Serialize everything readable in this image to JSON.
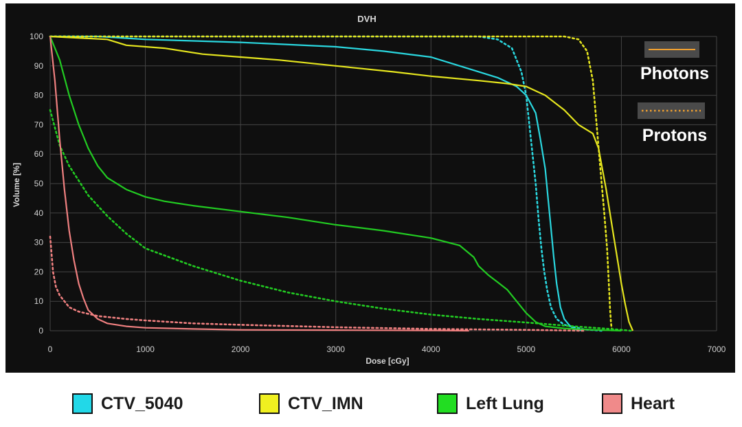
{
  "chart_data": {
    "type": "line",
    "title": "DVH",
    "xlabel": "Dose [cGy]",
    "ylabel": "Volume [%]",
    "xlim": [
      0,
      7000
    ],
    "ylim": [
      0,
      100
    ],
    "xticks": [
      0,
      1000,
      2000,
      3000,
      4000,
      5000,
      6000,
      7000
    ],
    "yticks": [
      0,
      10,
      20,
      30,
      40,
      50,
      60,
      70,
      80,
      90,
      100
    ],
    "grid": true,
    "styles": [
      {
        "name": "Photons",
        "dash": "solid",
        "color": "#f0a030"
      },
      {
        "name": "Protons",
        "dash": "dotted",
        "color": "#f0a030"
      }
    ],
    "series": [
      {
        "name": "CTV_5040",
        "modality": "Photons",
        "color": "#2ad8e0",
        "points": [
          [
            0,
            100
          ],
          [
            500,
            100
          ],
          [
            1000,
            99
          ],
          [
            2000,
            98
          ],
          [
            3000,
            96.5
          ],
          [
            3500,
            95
          ],
          [
            4000,
            93
          ],
          [
            4400,
            89
          ],
          [
            4700,
            86
          ],
          [
            4900,
            83
          ],
          [
            5000,
            80
          ],
          [
            5100,
            74
          ],
          [
            5150,
            65
          ],
          [
            5200,
            55
          ],
          [
            5230,
            45
          ],
          [
            5260,
            35
          ],
          [
            5290,
            25
          ],
          [
            5320,
            16
          ],
          [
            5360,
            8
          ],
          [
            5400,
            4
          ],
          [
            5450,
            2
          ],
          [
            5500,
            0.6
          ],
          [
            5600,
            0
          ]
        ]
      },
      {
        "name": "CTV_5040",
        "modality": "Protons",
        "color": "#2ad8e0",
        "points": [
          [
            0,
            100
          ],
          [
            3000,
            100
          ],
          [
            4500,
            100
          ],
          [
            4700,
            99
          ],
          [
            4850,
            96
          ],
          [
            4950,
            88
          ],
          [
            5000,
            80
          ],
          [
            5050,
            65
          ],
          [
            5100,
            50
          ],
          [
            5130,
            38
          ],
          [
            5160,
            28
          ],
          [
            5190,
            20
          ],
          [
            5220,
            14
          ],
          [
            5260,
            8
          ],
          [
            5320,
            4
          ],
          [
            5400,
            2
          ],
          [
            5600,
            0.5
          ],
          [
            5800,
            0
          ]
        ]
      },
      {
        "name": "CTV_IMN",
        "modality": "Photons",
        "color": "#e6e61e",
        "points": [
          [
            0,
            100
          ],
          [
            600,
            99
          ],
          [
            800,
            97
          ],
          [
            1200,
            96
          ],
          [
            1600,
            94
          ],
          [
            2000,
            93
          ],
          [
            2400,
            92
          ],
          [
            3000,
            90
          ],
          [
            3600,
            88
          ],
          [
            4000,
            86.5
          ],
          [
            4500,
            85
          ],
          [
            4800,
            84
          ],
          [
            5000,
            83
          ],
          [
            5200,
            80
          ],
          [
            5400,
            75
          ],
          [
            5550,
            70
          ],
          [
            5700,
            67
          ],
          [
            5760,
            62
          ],
          [
            5800,
            55
          ],
          [
            5840,
            48
          ],
          [
            5880,
            40
          ],
          [
            5920,
            32
          ],
          [
            5960,
            24
          ],
          [
            6000,
            16
          ],
          [
            6040,
            9
          ],
          [
            6080,
            3
          ],
          [
            6120,
            0
          ]
        ]
      },
      {
        "name": "CTV_IMN",
        "modality": "Protons",
        "color": "#e6e61e",
        "points": [
          [
            0,
            100
          ],
          [
            5000,
            100
          ],
          [
            5400,
            100
          ],
          [
            5550,
            99
          ],
          [
            5640,
            95
          ],
          [
            5700,
            85
          ],
          [
            5740,
            70
          ],
          [
            5780,
            55
          ],
          [
            5820,
            40
          ],
          [
            5850,
            28
          ],
          [
            5870,
            15
          ],
          [
            5880,
            8
          ],
          [
            5890,
            3
          ],
          [
            5900,
            0
          ]
        ]
      },
      {
        "name": "Left Lung",
        "modality": "Photons",
        "color": "#22cc22",
        "points": [
          [
            0,
            100
          ],
          [
            100,
            92
          ],
          [
            200,
            80
          ],
          [
            300,
            70
          ],
          [
            400,
            62
          ],
          [
            500,
            56
          ],
          [
            600,
            52
          ],
          [
            800,
            48
          ],
          [
            1000,
            45.5
          ],
          [
            1200,
            44
          ],
          [
            1500,
            42.5
          ],
          [
            2000,
            40.5
          ],
          [
            2500,
            38.5
          ],
          [
            3000,
            36
          ],
          [
            3500,
            34
          ],
          [
            4000,
            31.5
          ],
          [
            4300,
            29
          ],
          [
            4450,
            25
          ],
          [
            4500,
            22
          ],
          [
            4600,
            19
          ],
          [
            4700,
            16.5
          ],
          [
            4800,
            14
          ],
          [
            4900,
            10
          ],
          [
            5000,
            6
          ],
          [
            5100,
            3
          ],
          [
            5200,
            1.5
          ],
          [
            5400,
            0.8
          ],
          [
            5700,
            0.3
          ],
          [
            6000,
            0
          ]
        ]
      },
      {
        "name": "Left Lung",
        "modality": "Protons",
        "color": "#22cc22",
        "points": [
          [
            0,
            75
          ],
          [
            100,
            63
          ],
          [
            200,
            56
          ],
          [
            300,
            51
          ],
          [
            400,
            46
          ],
          [
            600,
            39
          ],
          [
            800,
            33
          ],
          [
            1000,
            28
          ],
          [
            1500,
            22
          ],
          [
            2000,
            17
          ],
          [
            2500,
            13
          ],
          [
            3000,
            10
          ],
          [
            3500,
            7.5
          ],
          [
            4000,
            5.5
          ],
          [
            4500,
            4
          ],
          [
            5000,
            2.8
          ],
          [
            5500,
            1.5
          ],
          [
            5800,
            0.8
          ],
          [
            6000,
            0.3
          ],
          [
            6100,
            0
          ]
        ]
      },
      {
        "name": "Heart",
        "modality": "Photons",
        "color": "#f08080",
        "points": [
          [
            0,
            100
          ],
          [
            50,
            85
          ],
          [
            100,
            65
          ],
          [
            150,
            48
          ],
          [
            200,
            34
          ],
          [
            250,
            24
          ],
          [
            300,
            16
          ],
          [
            350,
            11
          ],
          [
            400,
            7
          ],
          [
            500,
            4
          ],
          [
            600,
            2.5
          ],
          [
            800,
            1.5
          ],
          [
            1000,
            1
          ],
          [
            1500,
            0.6
          ],
          [
            2000,
            0.3
          ],
          [
            3000,
            0.2
          ],
          [
            4000,
            0.1
          ],
          [
            4400,
            0
          ]
        ]
      },
      {
        "name": "Heart",
        "modality": "Protons",
        "color": "#f08080",
        "points": [
          [
            0,
            32
          ],
          [
            30,
            20
          ],
          [
            60,
            15
          ],
          [
            100,
            12
          ],
          [
            200,
            8
          ],
          [
            300,
            6.5
          ],
          [
            500,
            5
          ],
          [
            800,
            4
          ],
          [
            1000,
            3.5
          ],
          [
            1500,
            2.5
          ],
          [
            2000,
            2
          ],
          [
            3000,
            1.2
          ],
          [
            4000,
            0.6
          ],
          [
            5000,
            0.3
          ],
          [
            5600,
            0
          ]
        ]
      }
    ],
    "annotation_photons": "Photons",
    "annotation_protons": "Protons"
  },
  "legend": [
    {
      "label": "CTV_5040",
      "color": "#22d8e8"
    },
    {
      "label": "CTV_IMN",
      "color": "#f0f020"
    },
    {
      "label": "Left Lung",
      "color": "#22dd22"
    },
    {
      "label": "Heart",
      "color": "#f08a8a"
    }
  ]
}
